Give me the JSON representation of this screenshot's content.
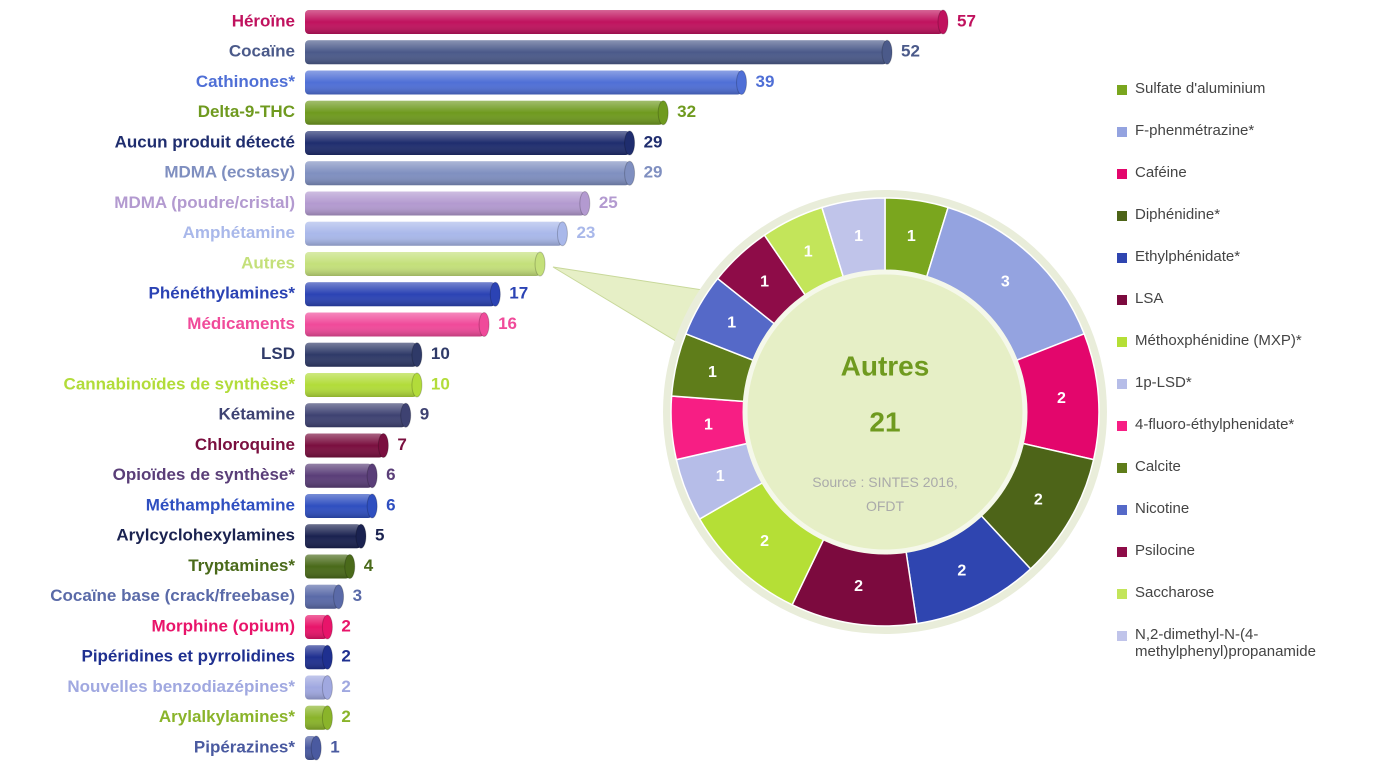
{
  "chart_data": [
    {
      "type": "bar",
      "categories": [
        "Héroïne",
        "Cocaïne",
        "Cathinones*",
        "Delta-9-THC",
        "Aucun produit détecté",
        "MDMA (ecstasy)",
        "MDMA (poudre/cristal)",
        "Amphétamine",
        "Autres",
        "Phénéthylamines*",
        "Médicaments",
        "LSD",
        "Cannabinoïdes de synthèse*",
        "Kétamine",
        "Chloroquine",
        "Opioïdes de synthèse*",
        "Méthamphétamine",
        "Arylcyclohexylamines",
        "Tryptamines*",
        "Cocaïne base (crack/freebase)",
        "Morphine (opium)",
        "Pipéridines et pyrrolidines",
        "Nouvelles benzodiazépines*",
        "Arylalkylamines*",
        "Pipérazines*"
      ],
      "values": [
        57,
        52,
        39,
        32,
        29,
        29,
        25,
        23,
        21,
        17,
        16,
        10,
        10,
        9,
        7,
        6,
        6,
        5,
        4,
        3,
        2,
        2,
        2,
        2,
        1
      ],
      "value_labels": [
        "57",
        "52",
        "39",
        "32",
        "29",
        "29",
        "25",
        "23",
        null,
        "17",
        "16",
        "10",
        "10",
        "9",
        "7",
        "6",
        "6",
        "5",
        "4",
        "3",
        "2",
        "2",
        "2",
        "2",
        "1"
      ],
      "colors": [
        "#c0125e",
        "#4b5a8a",
        "#4f6fd6",
        "#6f9a1f",
        "#1f2d6e",
        "#7f8fc0",
        "#b39ad0",
        "#a9b8ea",
        "#c4e07a",
        "#2b43b4",
        "#f04a9a",
        "#2f3a68",
        "#b2dc3a",
        "#3e4272",
        "#7a0f3f",
        "#5a3e78",
        "#2f4fc0",
        "#1a2250",
        "#4a6a1a",
        "#5a6aa8",
        "#e8146a",
        "#1f3090",
        "#a0a8e0",
        "#8ab42a",
        "#4a5aa0"
      ]
    },
    {
      "type": "donut",
      "title": "Autres",
      "total": "21",
      "source": "Source : SINTES 2016, OFDT",
      "categories": [
        "Sulfate d'aluminium",
        "F-phenmétrazine*",
        "Caféine",
        "Diphénidine*",
        "Ethylphénidate*",
        "LSA",
        "Méthoxphénidine (MXP)*",
        "1p-LSD*",
        "4-fluoro-éthylphenidate*",
        "Calcite",
        "Nicotine",
        "Psilocine",
        "Saccharose",
        "N,2-dimethyl-N-(4-methylphenyl)propanamide"
      ],
      "values": [
        1,
        3,
        2,
        2,
        2,
        2,
        2,
        1,
        1,
        1,
        1,
        1,
        1,
        1
      ],
      "colors": [
        "#7aa61e",
        "#94a3e0",
        "#e3066c",
        "#4d6418",
        "#2f45b0",
        "#7c0a3e",
        "#b5df36",
        "#b6bde8",
        "#f71e84",
        "#5f7d1a",
        "#5569c8",
        "#8e0c48",
        "#c3e55a",
        "#c0c4ea"
      ]
    }
  ]
}
